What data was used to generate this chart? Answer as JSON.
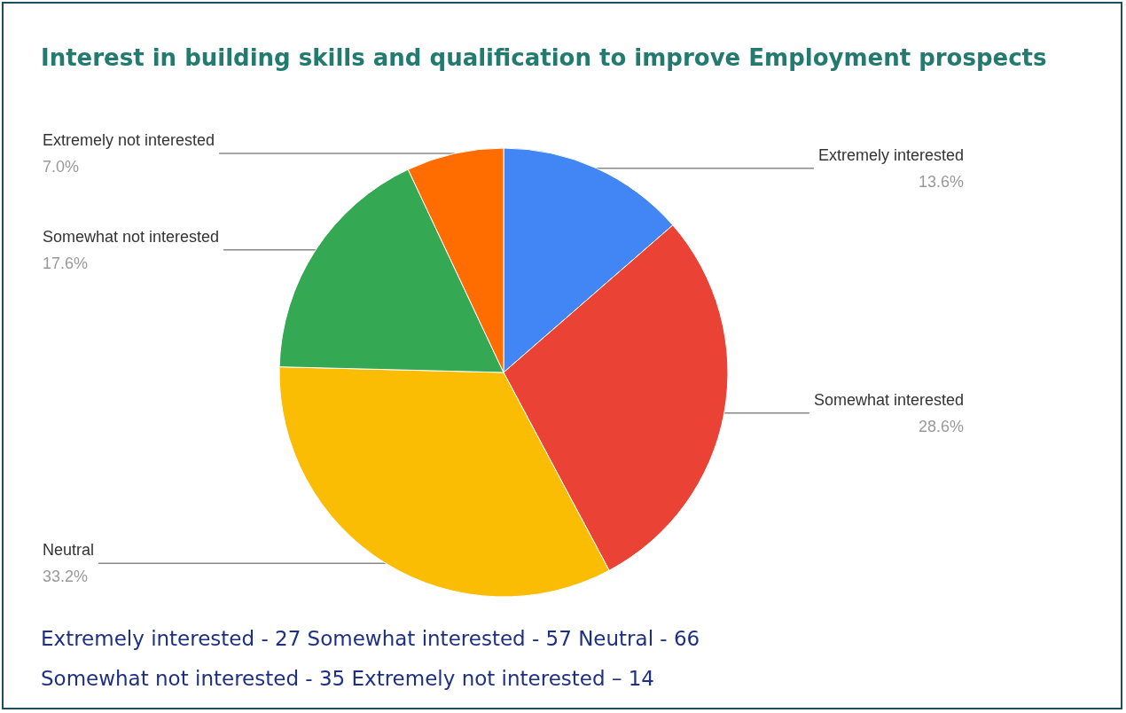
{
  "chart_data": {
    "type": "pie",
    "title": "Interest in building skills and qualification to improve Employment prospects",
    "categories": [
      "Extremely interested",
      "Somewhat interested",
      "Neutral",
      "Somewhat not interested",
      "Extremely not interested"
    ],
    "values": [
      13.6,
      28.6,
      33.2,
      17.6,
      7.0
    ],
    "value_labels": [
      "13.6%",
      "28.6%",
      "33.2%",
      "17.6%",
      "7.0%"
    ],
    "colors": [
      "#4285f4",
      "#ea4335",
      "#fbbc04",
      "#34a853",
      "#ff6d01"
    ],
    "annotations": [
      "Extremely interested - 27 Somewhat interested - 57 Neutral - 66",
      "Somewhat not interested - 35 Extremely not interested – 14"
    ]
  }
}
